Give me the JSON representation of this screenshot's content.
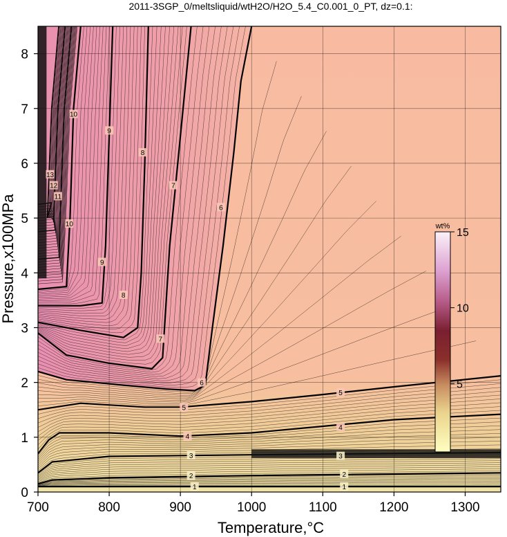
{
  "chart_data": {
    "type": "contour",
    "title": "2011-3SGP_0/meltsliquid/wtH2O/H2O_5.4_C0.001_0_PT, dz=0.1:",
    "xlabel": "Temperature,°C",
    "ylabel": "Pressure,x100MPa",
    "xlim": [
      700,
      1350
    ],
    "ylim": [
      0,
      8.5
    ],
    "xticks": [
      "700",
      "800",
      "900",
      "1000",
      "1100",
      "1200",
      "1300"
    ],
    "yticks": [
      "0",
      "1",
      "2",
      "3",
      "4",
      "5",
      "6",
      "7",
      "8"
    ],
    "grid": true,
    "colorbar": {
      "unit": "wt%",
      "range": [
        0.5,
        15
      ],
      "ticks": [
        "5",
        "10",
        "15"
      ],
      "colors": [
        "#ffffcc",
        "#e8d48a",
        "#c9a06a",
        "#8b3a2e",
        "#6b1a1a",
        "#b04a6a",
        "#d98fc0",
        "#f2d6ee",
        "#ffffff"
      ]
    },
    "major_contours": [
      {
        "level": 1,
        "points": [
          [
            700,
            0.1
          ],
          [
            800,
            0.1
          ],
          [
            1000,
            0.1
          ],
          [
            1350,
            0.1
          ]
        ]
      },
      {
        "level": 2,
        "points": [
          [
            700,
            0.15
          ],
          [
            720,
            0.22
          ],
          [
            800,
            0.26
          ],
          [
            1000,
            0.3
          ],
          [
            1350,
            0.35
          ]
        ]
      },
      {
        "level": 3,
        "points": [
          [
            700,
            0.35
          ],
          [
            720,
            0.55
          ],
          [
            800,
            0.65
          ],
          [
            1000,
            0.68
          ],
          [
            1350,
            0.72
          ]
        ]
      },
      {
        "level": 4,
        "points": [
          [
            700,
            0.7
          ],
          [
            715,
            0.95
          ],
          [
            730,
            1.08
          ],
          [
            800,
            1.08
          ],
          [
            900,
            1.02
          ],
          [
            1000,
            1.08
          ],
          [
            1100,
            1.2
          ],
          [
            1200,
            1.32
          ],
          [
            1350,
            1.42
          ]
        ]
      },
      {
        "level": 5,
        "points": [
          [
            700,
            1.5
          ],
          [
            760,
            1.62
          ],
          [
            850,
            1.55
          ],
          [
            900,
            1.55
          ],
          [
            1000,
            1.65
          ],
          [
            1100,
            1.78
          ],
          [
            1200,
            1.92
          ],
          [
            1350,
            2.12
          ]
        ]
      },
      {
        "level": 6,
        "points": [
          [
            700,
            2.2
          ],
          [
            740,
            2.05
          ],
          [
            820,
            1.95
          ],
          [
            880,
            1.88
          ],
          [
            920,
            1.85
          ],
          [
            935,
            1.95
          ],
          [
            945,
            3.0
          ],
          [
            960,
            4.5
          ],
          [
            975,
            6.2
          ],
          [
            985,
            7.5
          ],
          [
            1000,
            8.5
          ]
        ]
      },
      {
        "level": 7,
        "points": [
          [
            700,
            2.9
          ],
          [
            740,
            2.5
          ],
          [
            800,
            2.35
          ],
          [
            860,
            2.25
          ],
          [
            875,
            2.45
          ],
          [
            885,
            4.5
          ],
          [
            900,
            6.5
          ],
          [
            915,
            8.5
          ]
        ]
      },
      {
        "level": 8,
        "points": [
          [
            700,
            3.1
          ],
          [
            760,
            2.95
          ],
          [
            820,
            2.82
          ],
          [
            840,
            3.0
          ],
          [
            845,
            4.0
          ],
          [
            850,
            6.0
          ],
          [
            855,
            8.5
          ]
        ]
      },
      {
        "level": 9,
        "points": [
          [
            700,
            3.4
          ],
          [
            760,
            3.4
          ],
          [
            790,
            3.45
          ],
          [
            795,
            4.5
          ],
          [
            800,
            6.5
          ],
          [
            805,
            8.5
          ]
        ]
      },
      {
        "level": 10,
        "points": [
          [
            700,
            3.7
          ],
          [
            740,
            3.75
          ],
          [
            745,
            5.0
          ],
          [
            750,
            7.0
          ],
          [
            760,
            8.5
          ]
        ]
      }
    ]
  }
}
